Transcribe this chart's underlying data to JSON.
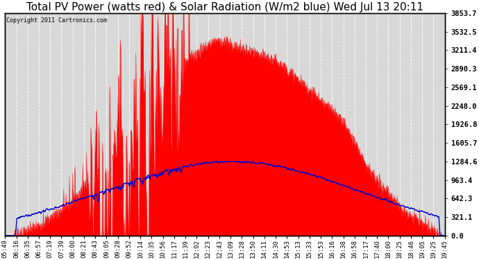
{
  "title": "Total PV Power (watts red) & Solar Radiation (W/m2 blue) Wed Jul 13 20:11",
  "copyright": "Copyright 2011 Cartronics.com",
  "title_fontsize": 11,
  "background_color": "#ffffff",
  "plot_bg_color": "#d8d8d8",
  "grid_color": "#ffffff",
  "right_yaxis_labels": [
    3853.7,
    3532.5,
    3211.4,
    2890.3,
    2569.1,
    2248.0,
    1926.8,
    1605.7,
    1284.6,
    963.4,
    642.3,
    321.1,
    0.0
  ],
  "ylim": [
    0,
    3853.7
  ],
  "x_labels": [
    "05:49",
    "06:16",
    "06:35",
    "06:57",
    "07:19",
    "07:39",
    "08:00",
    "08:21",
    "08:43",
    "09:05",
    "09:28",
    "09:52",
    "10:14",
    "10:35",
    "10:56",
    "11:17",
    "11:39",
    "12:02",
    "12:23",
    "12:43",
    "13:09",
    "13:28",
    "13:50",
    "14:11",
    "14:30",
    "14:53",
    "15:13",
    "15:33",
    "15:53",
    "16:16",
    "16:38",
    "16:58",
    "17:17",
    "17:40",
    "18:00",
    "18:25",
    "18:46",
    "19:05",
    "19:25",
    "19:45"
  ],
  "pv_color": "#ff0000",
  "solar_color": "#0000cc",
  "border_color": "#000000"
}
